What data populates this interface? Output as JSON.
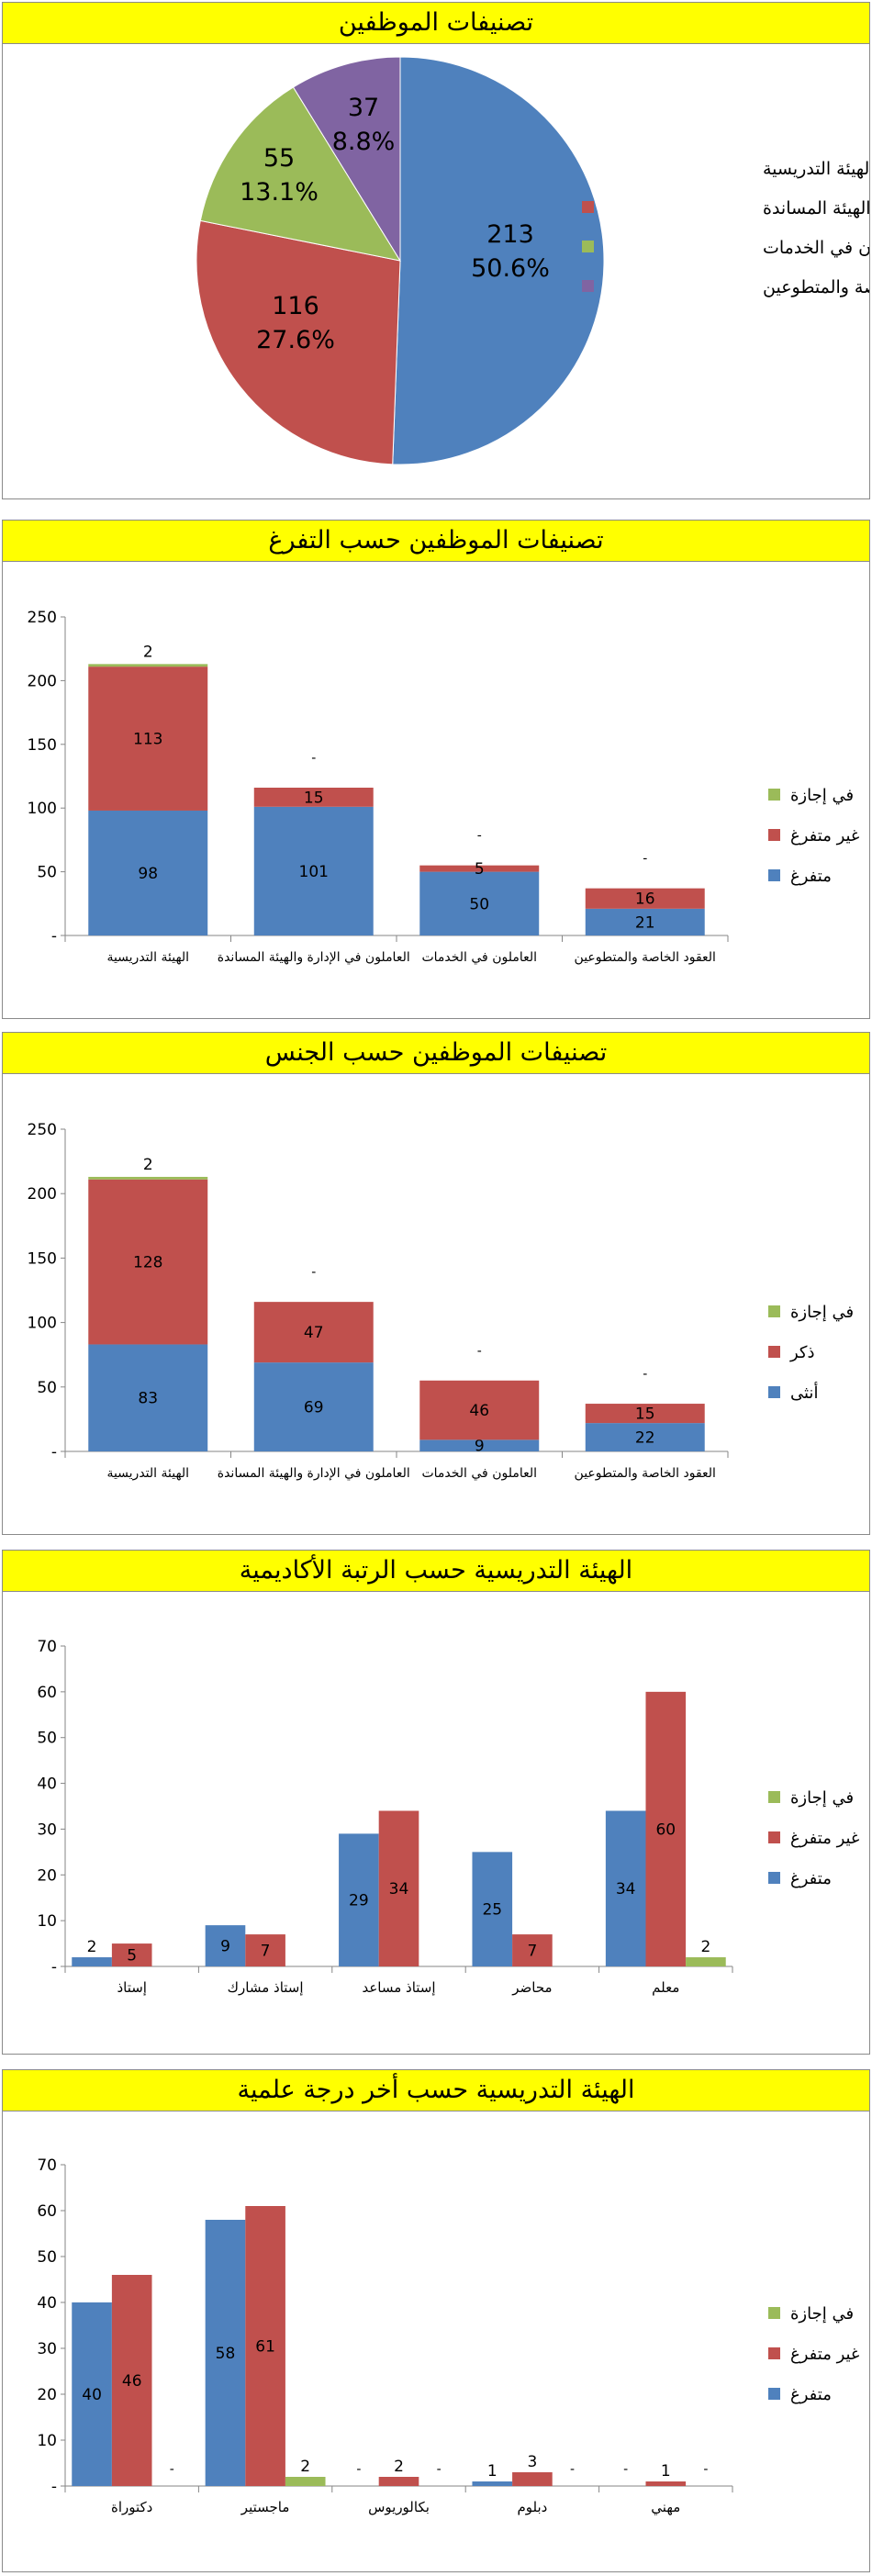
{
  "colors": {
    "blue": "#4f81bd",
    "red": "#c0504d",
    "green": "#9bbb59",
    "purple": "#8064a2",
    "title_bg": "#ffff00"
  },
  "panels": [
    {
      "title": "تصنيفات الموظفين"
    },
    {
      "title": "تصنيفات الموظفين حسب التفرغ"
    },
    {
      "title": "تصنيفات الموظفين حسب الجنس"
    },
    {
      "title": "الهيئة التدريسية حسب الرتبة الأكاديمية"
    },
    {
      "title": "الهيئة التدريسية حسب أخر درجة علمية"
    }
  ],
  "chart_data": [
    {
      "type": "pie",
      "title": "تصنيفات الموظفين",
      "slices": [
        {
          "label": "الهيئة التدريسية",
          "value": 213,
          "percent": "50.6%",
          "color": "#4f81bd"
        },
        {
          "label": "العاملون في الإدارة والهيئة المساندة",
          "value": 116,
          "percent": "27.6%",
          "color": "#c0504d"
        },
        {
          "label": "العاملون في الخدمات",
          "value": 55,
          "percent": "13.1%",
          "color": "#9bbb59"
        },
        {
          "label": "العقود الخاصة والمتطوعين",
          "value": 37,
          "percent": "8.8%",
          "color": "#8064a2"
        }
      ],
      "legend_position": "right"
    },
    {
      "type": "bar",
      "stacked": true,
      "title": "تصنيفات الموظفين حسب التفرغ",
      "categories": [
        "الهيئة التدريسية",
        "العاملون في الإدارة والهيئة المساندة",
        "العاملون في الخدمات",
        "العقود الخاصة والمتطوعين"
      ],
      "series": [
        {
          "name": "متفرغ",
          "color": "#4f81bd",
          "values": [
            98,
            101,
            50,
            21
          ],
          "labels": [
            "98",
            "101",
            "50",
            "21"
          ]
        },
        {
          "name": "غير متفرغ",
          "color": "#c0504d",
          "values": [
            113,
            15,
            5,
            16
          ],
          "labels": [
            "113",
            "15",
            "5",
            "16"
          ]
        },
        {
          "name": "في إجازة",
          "color": "#9bbb59",
          "values": [
            2,
            0,
            0,
            0
          ],
          "labels": [
            "2",
            "-",
            "-",
            "-"
          ]
        }
      ],
      "ylim": [
        0,
        250
      ],
      "yticks": [
        "-",
        "50",
        "100",
        "150",
        "200",
        "250"
      ],
      "grid": false,
      "legend_position": "right"
    },
    {
      "type": "bar",
      "stacked": true,
      "title": "تصنيفات الموظفين حسب الجنس",
      "categories": [
        "الهيئة التدريسية",
        "العاملون في الإدارة والهيئة المساندة",
        "العاملون في الخدمات",
        "العقود الخاصة والمتطوعين"
      ],
      "series": [
        {
          "name": "أنثى",
          "color": "#4f81bd",
          "values": [
            83,
            69,
            9,
            22
          ],
          "labels": [
            "83",
            "69",
            "9",
            "22"
          ]
        },
        {
          "name": "ذكر",
          "color": "#c0504d",
          "values": [
            128,
            47,
            46,
            15
          ],
          "labels": [
            "128",
            "47",
            "46",
            "15"
          ]
        },
        {
          "name": "في إجازة",
          "color": "#9bbb59",
          "values": [
            2,
            0,
            0,
            0
          ],
          "labels": [
            "2",
            "-",
            "-",
            "-"
          ]
        }
      ],
      "ylim": [
        0,
        250
      ],
      "yticks": [
        "-",
        "50",
        "100",
        "150",
        "200",
        "250"
      ],
      "grid": false,
      "legend_position": "right"
    },
    {
      "type": "bar",
      "stacked": false,
      "title": "الهيئة التدريسية حسب الرتبة الأكاديمية",
      "categories": [
        "إستاذ",
        "إستاذ مشارك",
        "إستاذ مساعد",
        "محاضر",
        "معلم"
      ],
      "series": [
        {
          "name": "متفرغ",
          "color": "#4f81bd",
          "values": [
            2,
            9,
            29,
            25,
            34
          ],
          "labels": [
            "2",
            "9",
            "29",
            "25",
            "34"
          ]
        },
        {
          "name": "غير متفرغ",
          "color": "#c0504d",
          "values": [
            5,
            7,
            34,
            7,
            60
          ],
          "labels": [
            "5",
            "7",
            "34",
            "7",
            "60"
          ]
        },
        {
          "name": "في إجازة",
          "color": "#9bbb59",
          "values": [
            0,
            0,
            0,
            0,
            2
          ],
          "labels": [
            "",
            "",
            "",
            "",
            "2"
          ]
        }
      ],
      "ylim": [
        0,
        70
      ],
      "yticks": [
        "-",
        "10",
        "20",
        "30",
        "40",
        "50",
        "60",
        "70"
      ],
      "grid": false,
      "legend_position": "right"
    },
    {
      "type": "bar",
      "stacked": false,
      "title": "الهيئة التدريسية حسب أخر درجة علمية",
      "categories": [
        "دكتوراة",
        "ماجستير",
        "بكالوريوس",
        "دبلوم",
        "مهني"
      ],
      "series": [
        {
          "name": "متفرغ",
          "color": "#4f81bd",
          "values": [
            40,
            58,
            0,
            1,
            0
          ],
          "labels": [
            "40",
            "58",
            "-",
            "1",
            "-"
          ]
        },
        {
          "name": "غير متفرغ",
          "color": "#c0504d",
          "values": [
            46,
            61,
            2,
            3,
            1
          ],
          "labels": [
            "46",
            "61",
            "2",
            "3",
            "1"
          ]
        },
        {
          "name": "في إجازة",
          "color": "#9bbb59",
          "values": [
            0,
            2,
            0,
            0,
            0
          ],
          "labels": [
            "-",
            "2",
            "-",
            "-",
            "-"
          ]
        }
      ],
      "ylim": [
        0,
        70
      ],
      "yticks": [
        "-",
        "10",
        "20",
        "30",
        "40",
        "50",
        "60",
        "70"
      ],
      "grid": false,
      "legend_position": "right"
    }
  ]
}
